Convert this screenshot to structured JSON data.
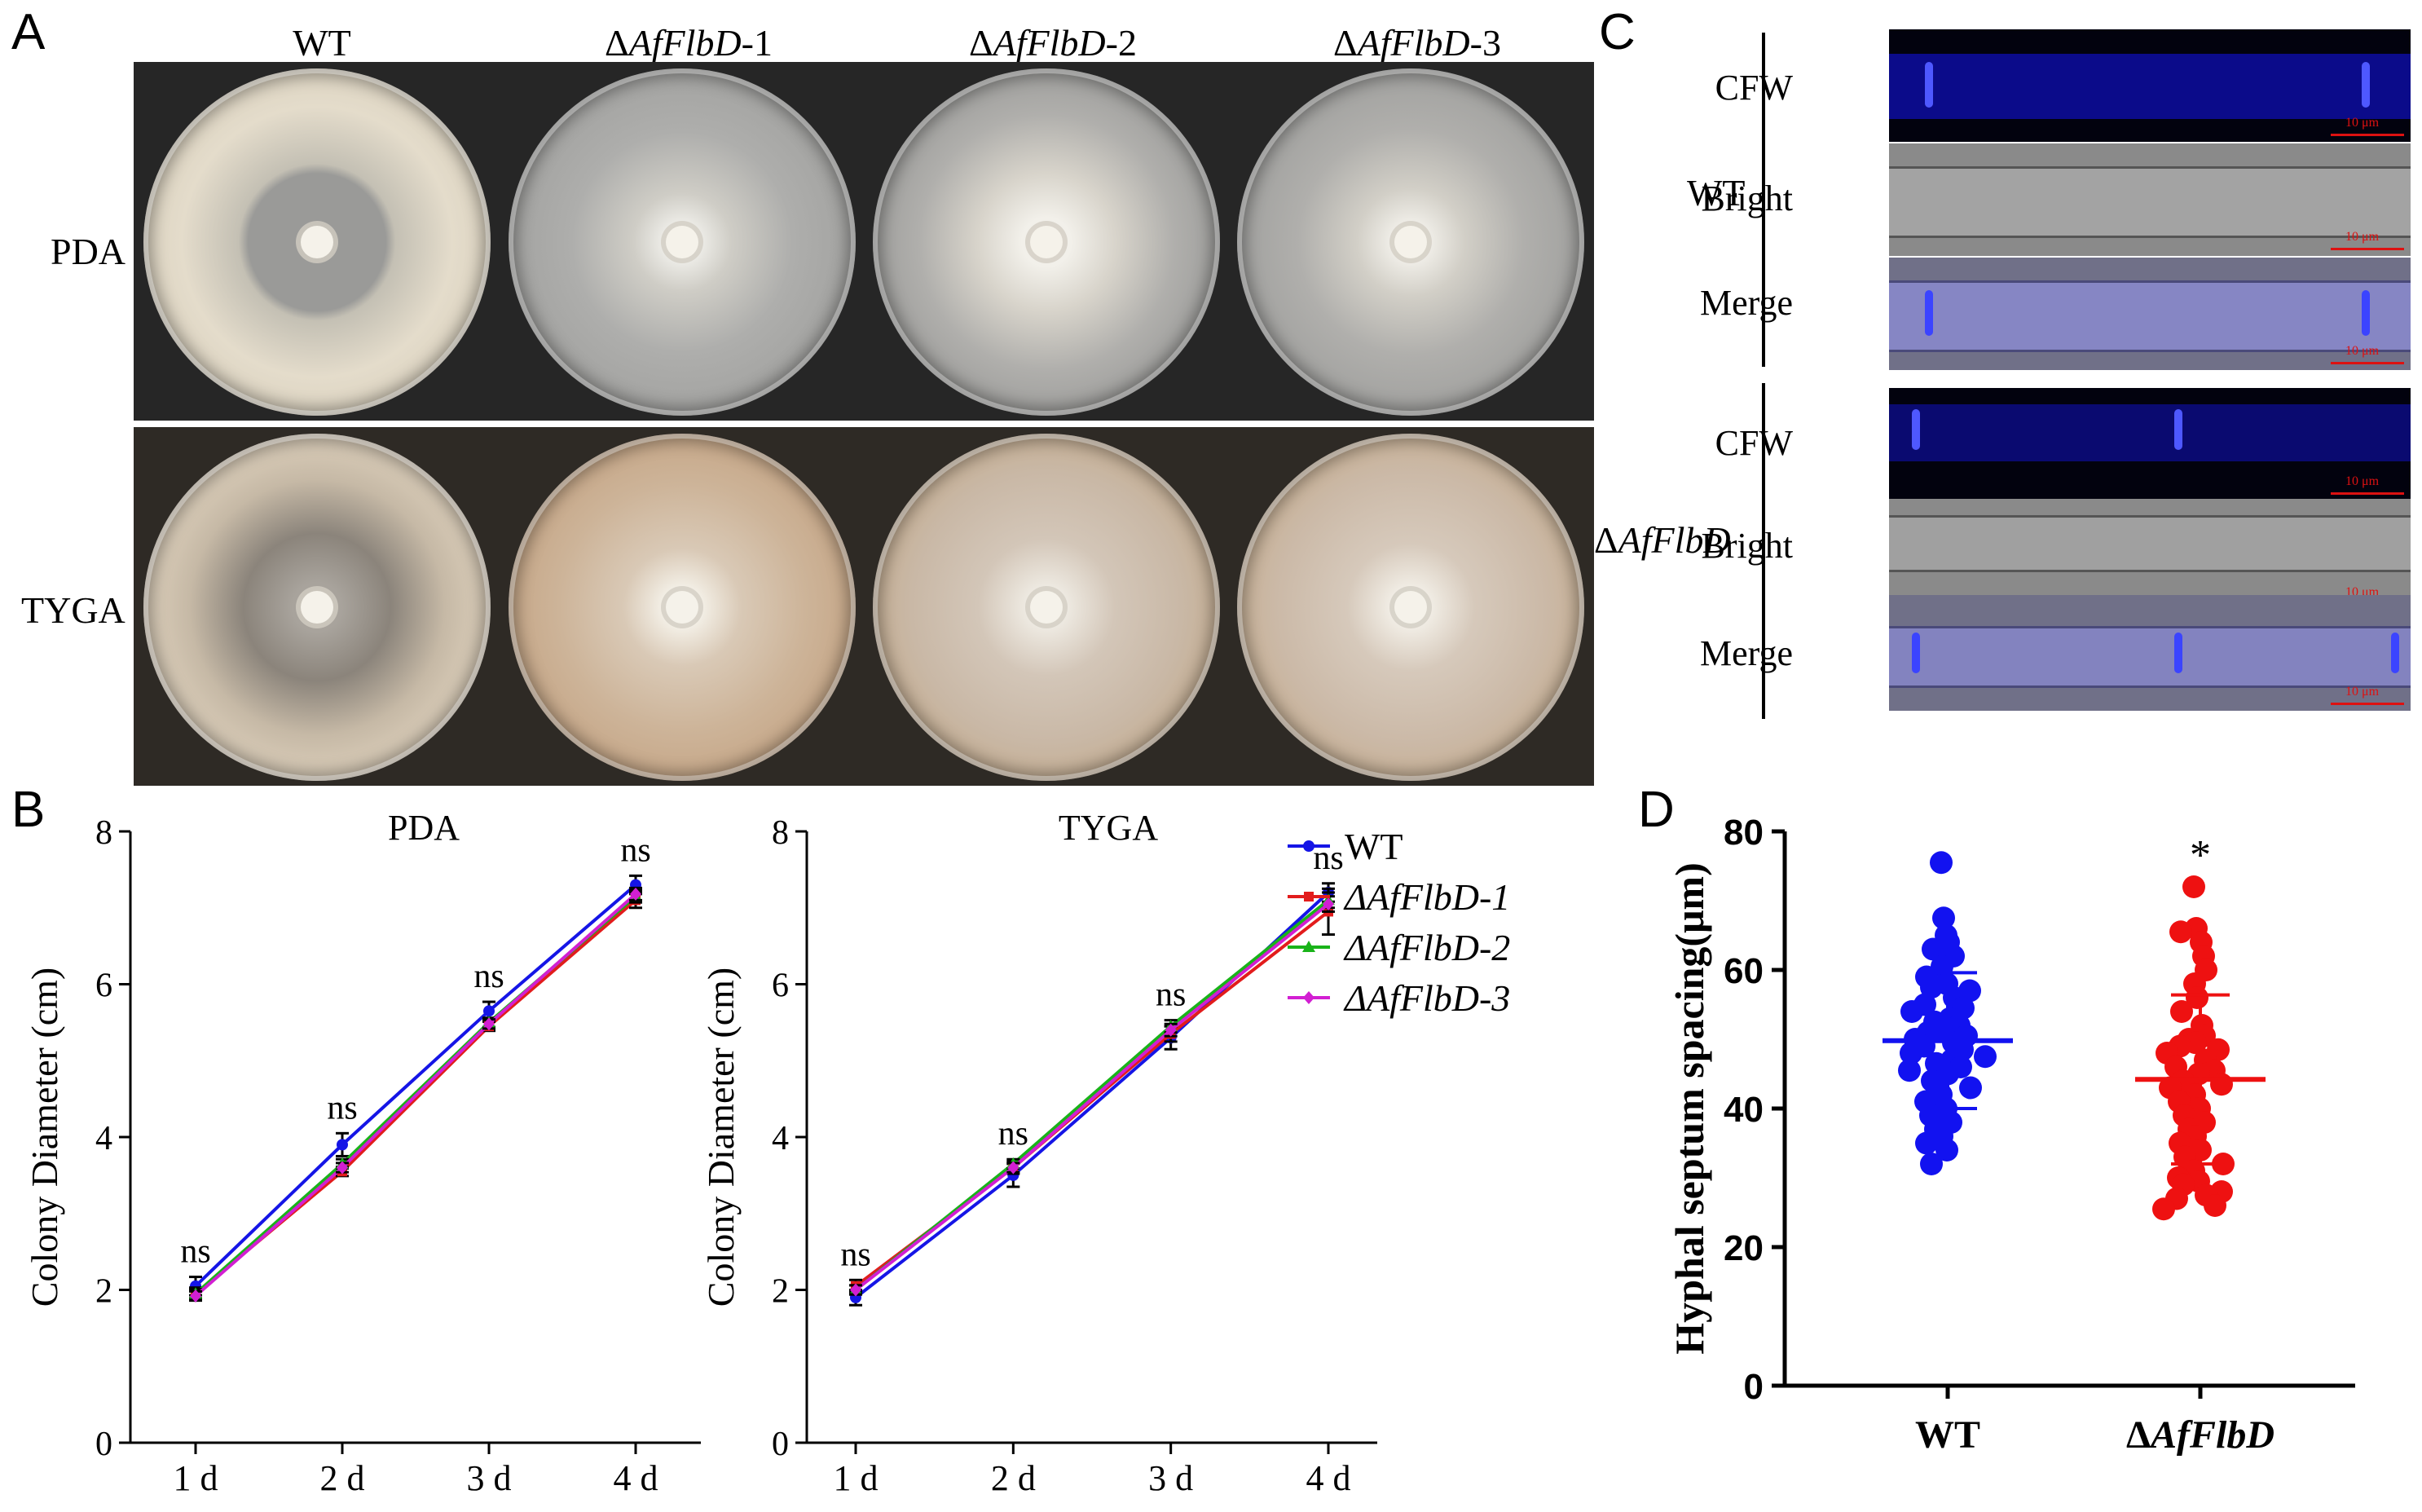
{
  "panel_labels": {
    "a": "A",
    "b": "B",
    "c": "C",
    "d": "D"
  },
  "panel_a": {
    "columns": [
      "WT",
      "ΔAfFlbD-1",
      "ΔAfFlbD-2",
      "ΔAfFlbD-3"
    ],
    "columns_prefix": [
      "WT",
      "Δ",
      "Δ",
      "Δ"
    ],
    "columns_italic": [
      "",
      "AfFlbD",
      "AfFlbD",
      "AfFlbD"
    ],
    "columns_suffix": [
      "",
      "-1",
      "-2",
      "-3"
    ],
    "rows": [
      "PDA",
      "TYGA"
    ]
  },
  "panel_c": {
    "strain_labels": [
      "WT",
      "AfFlbD"
    ],
    "delta": "Δ",
    "channel_labels": [
      "CFW",
      "Bright",
      "Merge"
    ],
    "scale_bar_label": "10 μm"
  },
  "chart_data": [
    {
      "type": "line",
      "title": "PDA",
      "xlabel": "",
      "ylabel": "Colony Diameter (cm)",
      "categories": [
        "1 d",
        "2 d",
        "3 d",
        "4 d"
      ],
      "ylim": [
        0,
        8
      ],
      "yticks": [
        "0",
        "2",
        "4",
        "6",
        "8"
      ],
      "annotations": [
        "ns",
        "ns",
        "ns",
        "ns"
      ],
      "series": [
        {
          "name": "WT",
          "color": "#1515e6",
          "marker": "circle",
          "values": [
            2.05,
            3.9,
            5.65,
            7.3
          ],
          "errors": [
            0.12,
            0.15,
            0.12,
            0.12
          ]
        },
        {
          "name": "ΔAfFlbD-1",
          "color": "#e21c1c",
          "marker": "square",
          "values": [
            1.95,
            3.55,
            5.45,
            7.1
          ],
          "errors": [
            0.08,
            0.06,
            0.06,
            0.1
          ]
        },
        {
          "name": "ΔAfFlbD-2",
          "color": "#19b319",
          "marker": "triangle",
          "values": [
            1.95,
            3.65,
            5.5,
            7.15
          ],
          "errors": [
            0.06,
            0.06,
            0.06,
            0.08
          ]
        },
        {
          "name": "ΔAfFlbD-3",
          "color": "#d21fd2",
          "marker": "diamond",
          "values": [
            1.92,
            3.6,
            5.48,
            7.18
          ],
          "errors": [
            0.06,
            0.06,
            0.06,
            0.08
          ]
        }
      ]
    },
    {
      "type": "line",
      "title": "TYGA",
      "xlabel": "",
      "ylabel": "Colony Diameter (cm)",
      "categories": [
        "1 d",
        "2 d",
        "3 d",
        "4 d"
      ],
      "ylim": [
        0,
        8
      ],
      "yticks": [
        "0",
        "2",
        "4",
        "6",
        "8"
      ],
      "annotations": [
        "ns",
        "ns",
        "ns",
        "ns"
      ],
      "series": [
        {
          "name": "WT",
          "color": "#1515e6",
          "marker": "circle",
          "values": [
            1.9,
            3.5,
            5.3,
            7.2
          ],
          "errors": [
            0.1,
            0.15,
            0.15,
            0.12
          ]
        },
        {
          "name": "ΔAfFlbD-1",
          "color": "#e21c1c",
          "marker": "square",
          "values": [
            2.05,
            3.6,
            5.35,
            6.95
          ],
          "errors": [
            0.08,
            0.08,
            0.1,
            0.3
          ]
        },
        {
          "name": "ΔAfFlbD-2",
          "color": "#19b319",
          "marker": "triangle",
          "values": [
            2.0,
            3.65,
            5.45,
            7.1
          ],
          "errors": [
            0.06,
            0.06,
            0.08,
            0.1
          ]
        },
        {
          "name": "ΔAfFlbD-3",
          "color": "#d21fd2",
          "marker": "diamond",
          "values": [
            2.0,
            3.6,
            5.4,
            7.05
          ],
          "errors": [
            0.06,
            0.06,
            0.08,
            0.1
          ]
        }
      ],
      "legend": "top-right"
    },
    {
      "type": "scatter",
      "title": "",
      "ylabel": "Hyphal septum spacing(μm)",
      "categories": [
        "WT",
        "ΔAfFlbD"
      ],
      "category_prefix": [
        "",
        "Δ"
      ],
      "category_italic": [
        "WT",
        "AfFlbD"
      ],
      "ylim": [
        0,
        80
      ],
      "yticks": [
        "0",
        "20",
        "40",
        "60",
        "80"
      ],
      "significance": [
        "",
        "*"
      ],
      "groups": [
        {
          "name": "WT",
          "color": "#1212f0",
          "mean": 49.8,
          "sd": 9.8,
          "values": [
            75.5,
            67.5,
            65,
            64,
            63,
            62,
            60.5,
            59,
            58,
            57.5,
            57,
            56,
            55,
            54.5,
            54,
            53,
            52.5,
            52,
            51.5,
            51,
            50.5,
            50,
            49.5,
            49,
            48.5,
            48,
            47.5,
            47,
            46.5,
            46,
            45.5,
            45,
            44,
            43,
            42,
            41,
            40,
            39,
            38,
            37,
            36,
            35,
            34,
            32
          ]
        },
        {
          "name": "ΔAfFlbD",
          "color": "#ee1111",
          "mean": 44.2,
          "sd": 12.2,
          "values": [
            72,
            66,
            65.5,
            64,
            62,
            60,
            58,
            56,
            54,
            52,
            50.5,
            50,
            49.5,
            49,
            48.5,
            48,
            47,
            46,
            45.5,
            45,
            44,
            43.5,
            43,
            42,
            41,
            40,
            39,
            38,
            37,
            36,
            35,
            34,
            33,
            32,
            31,
            30,
            29.5,
            29,
            28,
            27.5,
            27,
            26,
            25.5
          ]
        }
      ]
    }
  ]
}
